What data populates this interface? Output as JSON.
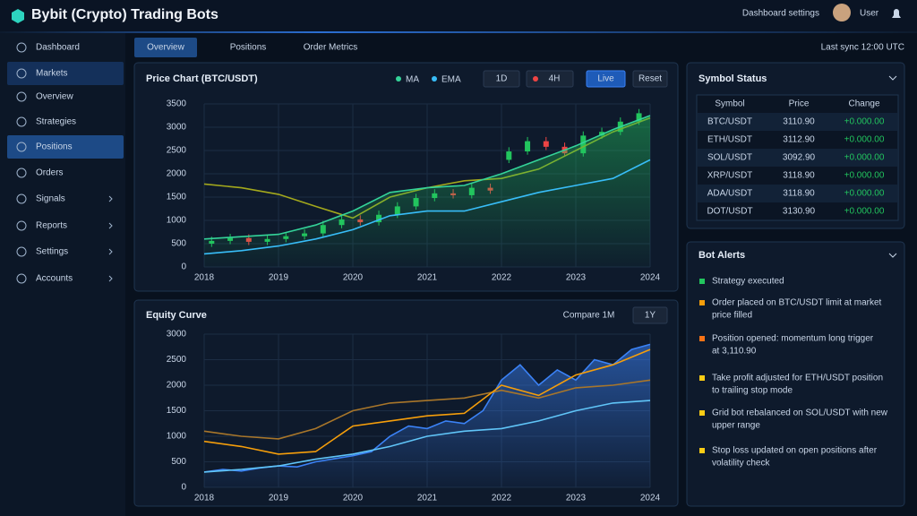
{
  "header": {
    "title": "Bybit (Crypto) Trading Bots",
    "menu": "Dashboard settings",
    "user": "User"
  },
  "sidebar": {
    "items": [
      {
        "label": "Dashboard"
      },
      {
        "label": "Markets",
        "active": true
      },
      {
        "label": "Overview"
      },
      {
        "label": "Strategies"
      },
      {
        "label": "Positions",
        "active": true
      },
      {
        "label": "Orders"
      },
      {
        "label": "Signals",
        "expandable": true
      },
      {
        "label": "Reports",
        "expandable": true
      },
      {
        "label": "Settings",
        "expandable": true
      },
      {
        "label": "Accounts",
        "expandable": true
      }
    ]
  },
  "tabs": {
    "items": [
      {
        "label": "Overview",
        "active": true
      },
      {
        "label": "Positions"
      },
      {
        "label": "Order Metrics"
      }
    ],
    "status": "Last sync 12:00 UTC"
  },
  "chart_data": [
    {
      "type": "candlestick",
      "title": "Price Chart (BTC/USDT)",
      "xlim": [
        2018,
        2024
      ],
      "xticks": [
        2018,
        2019,
        2020,
        2021,
        2022,
        2023,
        2024
      ],
      "ylim": [
        0,
        3500
      ],
      "yticks": [
        0,
        500,
        1000,
        1500,
        2000,
        2500,
        3000,
        3500
      ],
      "grid": true,
      "buttons": [
        {
          "label": "1D"
        },
        {
          "label": "4H",
          "color": "#ef4444"
        },
        {
          "label": "Live",
          "active": true
        },
        {
          "label": "Reset"
        }
      ],
      "x": [
        2018,
        2018.5,
        2019,
        2019.5,
        2020,
        2020.5,
        2021,
        2021.5,
        2022,
        2022.5,
        2023,
        2023.5,
        2024
      ],
      "series": [
        {
          "type": "candlestick",
          "up_color": "#22c55e",
          "down_color": "#ef4444",
          "x": [
            2018.1,
            2018.35,
            2018.6,
            2018.85,
            2019.1,
            2019.35,
            2019.6,
            2019.85,
            2020.1,
            2020.35,
            2020.6,
            2020.85,
            2021.1,
            2021.35,
            2021.6,
            2021.85,
            2022.1,
            2022.35,
            2022.6,
            2022.85,
            2023.1,
            2023.35,
            2023.6,
            2023.85
          ],
          "open": [
            500,
            560,
            620,
            540,
            600,
            660,
            720,
            900,
            1020,
            960,
            1120,
            1300,
            1480,
            1580,
            1540,
            1700,
            2300,
            2480,
            2700,
            2580,
            2440,
            2820,
            2900,
            3120
          ],
          "high": [
            650,
            710,
            700,
            690,
            750,
            810,
            990,
            1110,
            1110,
            1210,
            1390,
            1570,
            1670,
            1670,
            1790,
            1790,
            2570,
            2790,
            2790,
            2670,
            2910,
            2990,
            3210,
            3390
          ],
          "low": [
            430,
            490,
            470,
            470,
            530,
            590,
            650,
            830,
            890,
            890,
            1050,
            1230,
            1410,
            1470,
            1470,
            1570,
            2230,
            2410,
            2510,
            2370,
            2370,
            2750,
            2830,
            3050
          ],
          "close": [
            560,
            620,
            540,
            600,
            660,
            720,
            900,
            1020,
            960,
            1120,
            1300,
            1480,
            1580,
            1540,
            1700,
            1640,
            2480,
            2700,
            2580,
            2440,
            2820,
            2900,
            3120,
            3300
          ]
        },
        {
          "type": "line",
          "color": "#a3a81c",
          "values": [
            1780,
            1700,
            1560,
            1300,
            1050,
            1500,
            1700,
            1850,
            1900,
            2100,
            2500,
            2900,
            3200
          ]
        },
        {
          "type": "line",
          "name": "MA",
          "color": "#34d399",
          "fill": true,
          "values": [
            600,
            650,
            700,
            900,
            1200,
            1600,
            1700,
            1750,
            2000,
            2300,
            2600,
            2950,
            3250
          ]
        },
        {
          "type": "line",
          "name": "EMA",
          "color": "#38bdf8",
          "values": [
            280,
            350,
            450,
            600,
            800,
            1100,
            1200,
            1200,
            1400,
            1600,
            1750,
            1900,
            2300
          ]
        }
      ]
    },
    {
      "type": "line",
      "title": "Equity Curve",
      "xlim": [
        2018,
        2024
      ],
      "xticks": [
        2018,
        2019,
        2020,
        2021,
        2022,
        2023,
        2024
      ],
      "ylim": [
        0,
        3000
      ],
      "yticks": [
        0,
        500,
        1000,
        1500,
        2000,
        2500,
        3000
      ],
      "grid": true,
      "buttons": [
        {
          "label": "Compare 1M",
          "plain": true
        },
        {
          "label": "1Y"
        }
      ],
      "x": [
        2018,
        2018.5,
        2019,
        2019.5,
        2020,
        2020.5,
        2021,
        2021.5,
        2022,
        2022.5,
        2023,
        2023.5,
        2024
      ],
      "series": [
        {
          "type": "line",
          "color": "#3b82f6",
          "fill": true,
          "x": [
            2018,
            2018.25,
            2018.5,
            2018.75,
            2019,
            2019.25,
            2019.5,
            2019.75,
            2020,
            2020.25,
            2020.5,
            2020.75,
            2021,
            2021.25,
            2021.5,
            2021.75,
            2022,
            2022.25,
            2022.5,
            2022.75,
            2023,
            2023.25,
            2023.5,
            2023.75,
            2024
          ],
          "values": [
            300,
            350,
            320,
            380,
            420,
            400,
            500,
            560,
            620,
            700,
            1000,
            1200,
            1150,
            1300,
            1250,
            1500,
            2100,
            2400,
            2000,
            2300,
            2100,
            2500,
            2400,
            2700,
            2800
          ]
        },
        {
          "type": "line",
          "color": "#a8762a",
          "values": [
            1100,
            1000,
            950,
            1150,
            1500,
            1650,
            1700,
            1750,
            1900,
            1750,
            1950,
            2000,
            2100
          ]
        },
        {
          "type": "line",
          "color": "#f59e0b",
          "values": [
            900,
            800,
            650,
            700,
            1200,
            1300,
            1400,
            1450,
            2000,
            1800,
            2200,
            2400,
            2700
          ]
        },
        {
          "type": "line",
          "color": "#60c5f8",
          "values": [
            300,
            350,
            420,
            550,
            650,
            800,
            1000,
            1100,
            1150,
            1300,
            1500,
            1650,
            1700
          ]
        }
      ]
    }
  ],
  "watchlist": {
    "title": "Symbol Status",
    "columns": [
      "Symbol",
      "Price",
      "Change"
    ],
    "rows": [
      [
        "BTC/USDT",
        "3110.90",
        "+0.000.00"
      ],
      [
        "ETH/USDT",
        "3112.90",
        "+0.000.00"
      ],
      [
        "SOL/USDT",
        "3092.90",
        "+0.000.00"
      ],
      [
        "XRP/USDT",
        "3118.90",
        "+0.000.00"
      ],
      [
        "ADA/USDT",
        "3118.90",
        "+0.000.00"
      ],
      [
        "DOT/USDT",
        "3130.90",
        "+0.000.00"
      ]
    ]
  },
  "alerts": {
    "title": "Bot Alerts",
    "items": [
      {
        "color": "#22c55e",
        "lines": [
          "Strategy executed"
        ]
      },
      {
        "color": "#f59e0b",
        "lines": [
          "Order placed on BTC/USDT limit at market",
          "price filled"
        ]
      },
      {
        "color": "#f97316",
        "lines": [
          "Position opened: momentum long trigger",
          "at 3,110.90"
        ]
      },
      {
        "color": "#facc15",
        "lines": [
          "Take profit adjusted for ETH/USDT position",
          "to trailing stop mode"
        ]
      },
      {
        "color": "#facc15",
        "lines": [
          "Grid bot rebalanced on SOL/USDT with new",
          "upper range"
        ]
      },
      {
        "color": "#facc15",
        "lines": [
          "Stop loss updated on open positions after",
          "volatility check"
        ]
      }
    ]
  }
}
